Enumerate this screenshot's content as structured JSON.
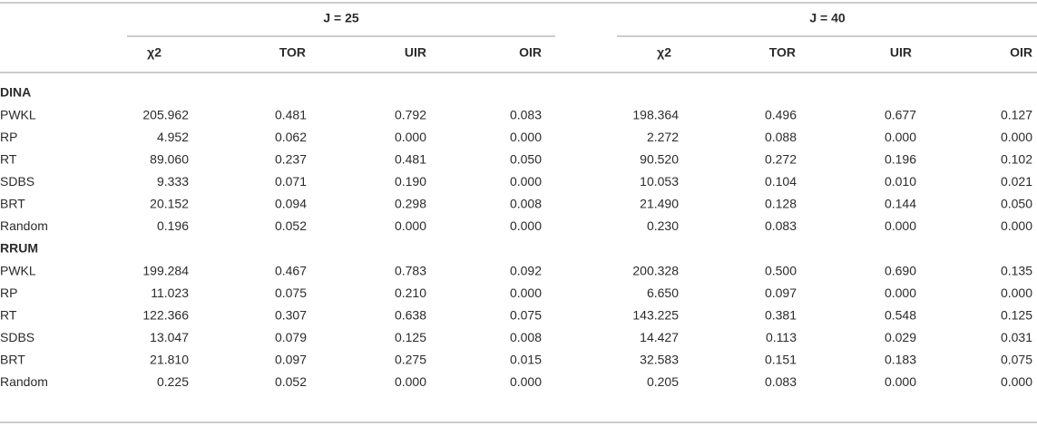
{
  "table": {
    "groups": [
      "J = 25",
      "J = 40"
    ],
    "headers": [
      "χ2",
      "TOR",
      "UIR",
      "OIR",
      "χ2",
      "TOR",
      "UIR",
      "OIR"
    ],
    "sections": [
      {
        "name": "DINA",
        "rows": [
          {
            "label": "PWKL",
            "values": [
              "205.962",
              "0.481",
              "0.792",
              "0.083",
              "198.364",
              "0.496",
              "0.677",
              "0.127"
            ]
          },
          {
            "label": "RP",
            "values": [
              "4.952",
              "0.062",
              "0.000",
              "0.000",
              "2.272",
              "0.088",
              "0.000",
              "0.000"
            ]
          },
          {
            "label": "RT",
            "values": [
              "89.060",
              "0.237",
              "0.481",
              "0.050",
              "90.520",
              "0.272",
              "0.196",
              "0.102"
            ]
          },
          {
            "label": "SDBS",
            "values": [
              "9.333",
              "0.071",
              "0.190",
              "0.000",
              "10.053",
              "0.104",
              "0.010",
              "0.021"
            ]
          },
          {
            "label": "BRT",
            "values": [
              "20.152",
              "0.094",
              "0.298",
              "0.008",
              "21.490",
              "0.128",
              "0.144",
              "0.050"
            ]
          },
          {
            "label": "Random",
            "values": [
              "0.196",
              "0.052",
              "0.000",
              "0.000",
              "0.230",
              "0.083",
              "0.000",
              "0.000"
            ]
          }
        ]
      },
      {
        "name": "RRUM",
        "rows": [
          {
            "label": "PWKL",
            "values": [
              "199.284",
              "0.467",
              "0.783",
              "0.092",
              "200.328",
              "0.500",
              "0.690",
              "0.135"
            ]
          },
          {
            "label": "RP",
            "values": [
              "11.023",
              "0.075",
              "0.210",
              "0.000",
              "6.650",
              "0.097",
              "0.000",
              "0.000"
            ]
          },
          {
            "label": "RT",
            "values": [
              "122.366",
              "0.307",
              "0.638",
              "0.075",
              "143.225",
              "0.381",
              "0.548",
              "0.125"
            ]
          },
          {
            "label": "SDBS",
            "values": [
              "13.047",
              "0.079",
              "0.125",
              "0.008",
              "14.427",
              "0.113",
              "0.029",
              "0.031"
            ]
          },
          {
            "label": "BRT",
            "values": [
              "21.810",
              "0.097",
              "0.275",
              "0.015",
              "32.583",
              "0.151",
              "0.183",
              "0.075"
            ]
          },
          {
            "label": "Random",
            "values": [
              "0.225",
              "0.052",
              "0.000",
              "0.000",
              "0.205",
              "0.083",
              "0.000",
              "0.000"
            ]
          }
        ]
      }
    ]
  }
}
